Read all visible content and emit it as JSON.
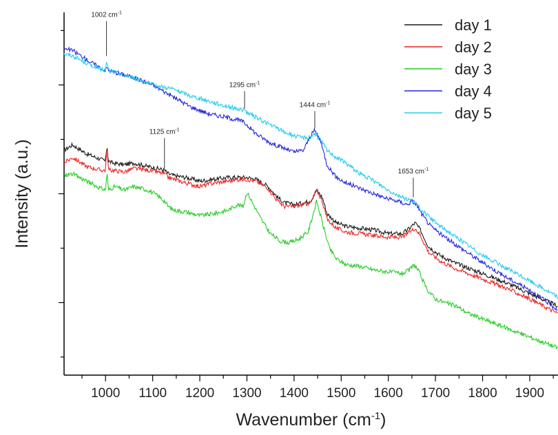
{
  "chart_data": {
    "type": "line",
    "xlabel": "Wavenumber (cm",
    "xlabel_sup": "-1",
    "xlabel_close": ")",
    "ylabel": "Intensity (a.u.)",
    "xlim": [
      912,
      1960
    ],
    "ylim": [
      0,
      1
    ],
    "xticks": [
      1000,
      1100,
      1200,
      1300,
      1400,
      1500,
      1600,
      1700,
      1800,
      1900
    ],
    "y_tick_labels_shown": false,
    "grid": false,
    "legend_position": "top-right",
    "series": [
      {
        "name": "day 1",
        "color": "#1a1a1a",
        "x": [
          912,
          930,
          960,
          990,
          1000,
          1003,
          1006,
          1015,
          1040,
          1060,
          1090,
          1110,
          1125,
          1133,
          1145,
          1170,
          1200,
          1230,
          1260,
          1285,
          1300,
          1320,
          1345,
          1365,
          1380,
          1400,
          1420,
          1435,
          1448,
          1460,
          1470,
          1490,
          1510,
          1540,
          1570,
          1600,
          1630,
          1645,
          1657,
          1668,
          1685,
          1710,
          1740,
          1770,
          1800,
          1850,
          1900,
          1960
        ],
        "y": [
          0.62,
          0.635,
          0.61,
          0.595,
          0.59,
          0.635,
          0.59,
          0.585,
          0.58,
          0.585,
          0.575,
          0.57,
          0.565,
          0.555,
          0.55,
          0.545,
          0.535,
          0.54,
          0.545,
          0.545,
          0.545,
          0.54,
          0.52,
          0.49,
          0.475,
          0.47,
          0.475,
          0.48,
          0.51,
          0.49,
          0.445,
          0.42,
          0.41,
          0.405,
          0.4,
          0.39,
          0.39,
          0.405,
          0.42,
          0.4,
          0.355,
          0.33,
          0.31,
          0.295,
          0.28,
          0.255,
          0.225,
          0.19
        ]
      },
      {
        "name": "day 2",
        "color": "#ee2222",
        "x": [
          912,
          930,
          960,
          990,
          1000,
          1003,
          1006,
          1015,
          1040,
          1060,
          1090,
          1110,
          1125,
          1133,
          1145,
          1170,
          1200,
          1230,
          1260,
          1285,
          1300,
          1320,
          1345,
          1365,
          1380,
          1400,
          1420,
          1435,
          1448,
          1460,
          1470,
          1490,
          1510,
          1540,
          1570,
          1600,
          1630,
          1645,
          1657,
          1668,
          1685,
          1710,
          1740,
          1770,
          1800,
          1850,
          1900,
          1960
        ],
        "y": [
          0.585,
          0.6,
          0.575,
          0.565,
          0.565,
          0.635,
          0.565,
          0.565,
          0.56,
          0.57,
          0.565,
          0.56,
          0.555,
          0.545,
          0.54,
          0.53,
          0.52,
          0.53,
          0.535,
          0.54,
          0.54,
          0.535,
          0.515,
          0.48,
          0.465,
          0.465,
          0.47,
          0.475,
          0.51,
          0.48,
          0.43,
          0.405,
          0.395,
          0.39,
          0.385,
          0.38,
          0.38,
          0.395,
          0.405,
          0.385,
          0.34,
          0.315,
          0.295,
          0.28,
          0.265,
          0.24,
          0.21,
          0.17
        ]
      },
      {
        "name": "day 3",
        "color": "#22cc22",
        "x": [
          912,
          930,
          960,
          990,
          1000,
          1003,
          1006,
          1020,
          1040,
          1060,
          1090,
          1110,
          1125,
          1133,
          1145,
          1170,
          1200,
          1230,
          1260,
          1280,
          1292,
          1300,
          1310,
          1330,
          1350,
          1370,
          1390,
          1410,
          1430,
          1448,
          1460,
          1475,
          1490,
          1510,
          1540,
          1570,
          1600,
          1630,
          1645,
          1655,
          1665,
          1680,
          1700,
          1720,
          1745,
          1770,
          1800,
          1850,
          1900,
          1960
        ],
        "y": [
          0.55,
          0.555,
          0.535,
          0.515,
          0.51,
          0.56,
          0.51,
          0.52,
          0.51,
          0.52,
          0.51,
          0.495,
          0.48,
          0.465,
          0.455,
          0.45,
          0.44,
          0.445,
          0.455,
          0.47,
          0.465,
          0.505,
          0.48,
          0.43,
          0.39,
          0.37,
          0.365,
          0.375,
          0.395,
          0.48,
          0.42,
          0.35,
          0.32,
          0.305,
          0.3,
          0.29,
          0.285,
          0.28,
          0.29,
          0.305,
          0.285,
          0.24,
          0.21,
          0.2,
          0.19,
          0.17,
          0.155,
          0.13,
          0.105,
          0.075
        ]
      },
      {
        "name": "day 4",
        "color": "#2222dd",
        "x": [
          912,
          930,
          960,
          985,
          1000,
          1003,
          1006,
          1020,
          1060,
          1100,
          1140,
          1180,
          1220,
          1260,
          1290,
          1300,
          1320,
          1350,
          1380,
          1400,
          1420,
          1435,
          1444,
          1455,
          1470,
          1490,
          1510,
          1540,
          1570,
          1600,
          1620,
          1640,
          1650,
          1660,
          1670,
          1690,
          1720,
          1760,
          1800,
          1850,
          1900,
          1960
        ],
        "y": [
          0.9,
          0.895,
          0.87,
          0.85,
          0.84,
          0.85,
          0.84,
          0.835,
          0.82,
          0.8,
          0.77,
          0.74,
          0.72,
          0.71,
          0.7,
          0.69,
          0.665,
          0.64,
          0.625,
          0.615,
          0.62,
          0.66,
          0.675,
          0.65,
          0.58,
          0.545,
          0.53,
          0.515,
          0.5,
          0.485,
          0.48,
          0.47,
          0.48,
          0.47,
          0.445,
          0.41,
          0.38,
          0.345,
          0.31,
          0.27,
          0.235,
          0.18
        ]
      },
      {
        "name": "day 5",
        "color": "#22ccee",
        "x": [
          912,
          930,
          960,
          985,
          1000,
          1003,
          1006,
          1020,
          1060,
          1100,
          1140,
          1180,
          1220,
          1260,
          1295,
          1305,
          1320,
          1350,
          1380,
          1410,
          1430,
          1444,
          1455,
          1470,
          1490,
          1510,
          1540,
          1570,
          1600,
          1630,
          1653,
          1670,
          1700,
          1750,
          1800,
          1850,
          1900,
          1960
        ],
        "y": [
          0.885,
          0.88,
          0.86,
          0.845,
          0.84,
          0.865,
          0.84,
          0.835,
          0.82,
          0.8,
          0.79,
          0.77,
          0.755,
          0.74,
          0.73,
          0.72,
          0.71,
          0.69,
          0.67,
          0.655,
          0.655,
          0.665,
          0.65,
          0.62,
          0.6,
          0.585,
          0.555,
          0.535,
          0.51,
          0.49,
          0.48,
          0.455,
          0.42,
          0.375,
          0.33,
          0.295,
          0.26,
          0.215
        ]
      }
    ],
    "annotations": [
      {
        "label": "1002 cm",
        "sup": "-1",
        "x": 1002
      },
      {
        "label": "1125 cm",
        "sup": "-1",
        "x": 1125
      },
      {
        "label": "1295 cm",
        "sup": "-1",
        "x": 1295
      },
      {
        "label": "1444 cm",
        "sup": "-1",
        "x": 1444
      },
      {
        "label": "1653 cm",
        "sup": "-1",
        "x": 1653
      }
    ]
  }
}
